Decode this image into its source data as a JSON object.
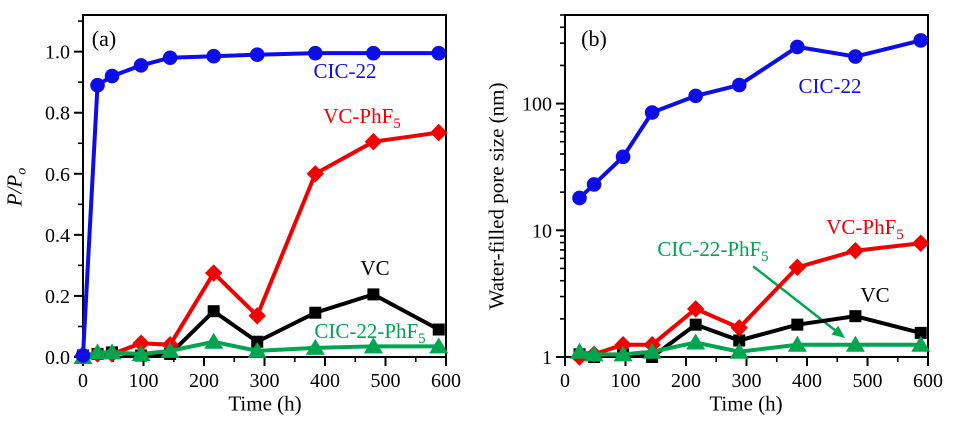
{
  "figure": {
    "background": "#ffffff",
    "axis_color": "#000000",
    "tick_label_fontsize": 20,
    "x_unit": "h"
  },
  "chart_data": [
    {
      "type": "line",
      "panel": "a",
      "title": "(a)",
      "xlabel": "Time (h)",
      "ylabel": "P/Po",
      "ylabel_main": "P/P",
      "ylabel_sub": "o",
      "yscale": "linear",
      "xlim": [
        0,
        600
      ],
      "ylim": [
        0,
        1.12
      ],
      "xticks_major": [
        0,
        100,
        200,
        300,
        400,
        500,
        600
      ],
      "xticks_minor": [
        50,
        150,
        250,
        350,
        450,
        550
      ],
      "yticks_major": [
        0,
        0.2,
        0.4,
        0.6,
        0.8,
        1.0
      ],
      "ytick_labels": [
        "0.0",
        "0.2",
        "0.4",
        "0.6",
        "0.8",
        "1.0"
      ],
      "yticks_minor": [
        0.1,
        0.3,
        0.5,
        0.7,
        0.9,
        1.1
      ],
      "x": [
        0,
        24,
        48,
        96,
        144,
        216,
        288,
        384,
        480,
        588
      ],
      "series": [
        {
          "name": "VC",
          "label": "VC",
          "label_sub": "",
          "color": "#000000",
          "marker": "square",
          "values": [
            0.005,
            0.01,
            0.015,
            0.005,
            0.01,
            0.15,
            0.05,
            0.145,
            0.205,
            0.09
          ]
        },
        {
          "name": "VC-PhF5",
          "label": "VC-PhF",
          "label_sub": "5",
          "color": "#f20000",
          "marker": "diamond",
          "values": [
            0.005,
            0.01,
            0.01,
            0.045,
            0.04,
            0.275,
            0.135,
            0.6,
            0.705,
            0.735
          ]
        },
        {
          "name": "CIC-22-PhF5",
          "label": "CIC-22-PhF",
          "label_sub": "5",
          "color": "#00a550",
          "marker": "triangle",
          "values": [
            0.0,
            0.015,
            0.015,
            0.01,
            0.02,
            0.05,
            0.02,
            0.03,
            0.035,
            0.035
          ]
        },
        {
          "name": "CIC-22",
          "label": "CIC-22",
          "label_sub": "",
          "color": "#0d0de8",
          "marker": "circle",
          "values": [
            0.005,
            0.89,
            0.92,
            0.955,
            0.98,
            0.985,
            0.99,
            0.995,
            0.995,
            0.995
          ]
        }
      ]
    },
    {
      "type": "line",
      "panel": "b",
      "title": "(b)",
      "xlabel": "Time (h)",
      "ylabel": "Water-filled pore size (nm)",
      "ylabel_main": "Water-filled pore size (nm)",
      "ylabel_sub": "",
      "yscale": "log",
      "xlim": [
        0,
        600
      ],
      "ylim": [
        1,
        500
      ],
      "xticks_major": [
        0,
        100,
        200,
        300,
        400,
        500,
        600
      ],
      "xticks_minor": [
        50,
        150,
        250,
        350,
        450,
        550
      ],
      "yticks_major": [
        1,
        10,
        100
      ],
      "ytick_labels": [
        "1",
        "10",
        "100"
      ],
      "yticks_minor": [
        2,
        3,
        4,
        5,
        6,
        7,
        8,
        9,
        20,
        30,
        40,
        50,
        60,
        70,
        80,
        90,
        200,
        300,
        400,
        500
      ],
      "x": [
        24,
        48,
        96,
        144,
        216,
        288,
        384,
        480,
        588
      ],
      "series": [
        {
          "name": "VC",
          "label": "VC",
          "label_sub": "",
          "color": "#000000",
          "marker": "square",
          "values": [
            1.05,
            1.0,
            1.05,
            1.0,
            1.8,
            1.35,
            1.8,
            2.1,
            1.55
          ]
        },
        {
          "name": "VC-PhF5",
          "label": "VC-PhF",
          "label_sub": "5",
          "color": "#f20000",
          "marker": "diamond",
          "values": [
            1.0,
            1.05,
            1.25,
            1.25,
            2.4,
            1.7,
            5.1,
            6.9,
            7.9
          ]
        },
        {
          "name": "CIC-22-PhF5",
          "label": "CIC-22-PhF",
          "label_sub": "5",
          "color": "#00a550",
          "marker": "triangle",
          "values": [
            1.1,
            1.05,
            1.05,
            1.1,
            1.3,
            1.1,
            1.25,
            1.25,
            1.25
          ]
        },
        {
          "name": "CIC-22",
          "label": "CIC-22",
          "label_sub": "",
          "color": "#0d0de8",
          "marker": "circle",
          "values": [
            18,
            23,
            38,
            85,
            115,
            140,
            280,
            235,
            315
          ]
        }
      ],
      "annotation_arrow": {
        "from_h": 311,
        "from_v": 5.2,
        "to_h": 463,
        "to_v": 1.41,
        "color": "#00a550"
      }
    }
  ]
}
